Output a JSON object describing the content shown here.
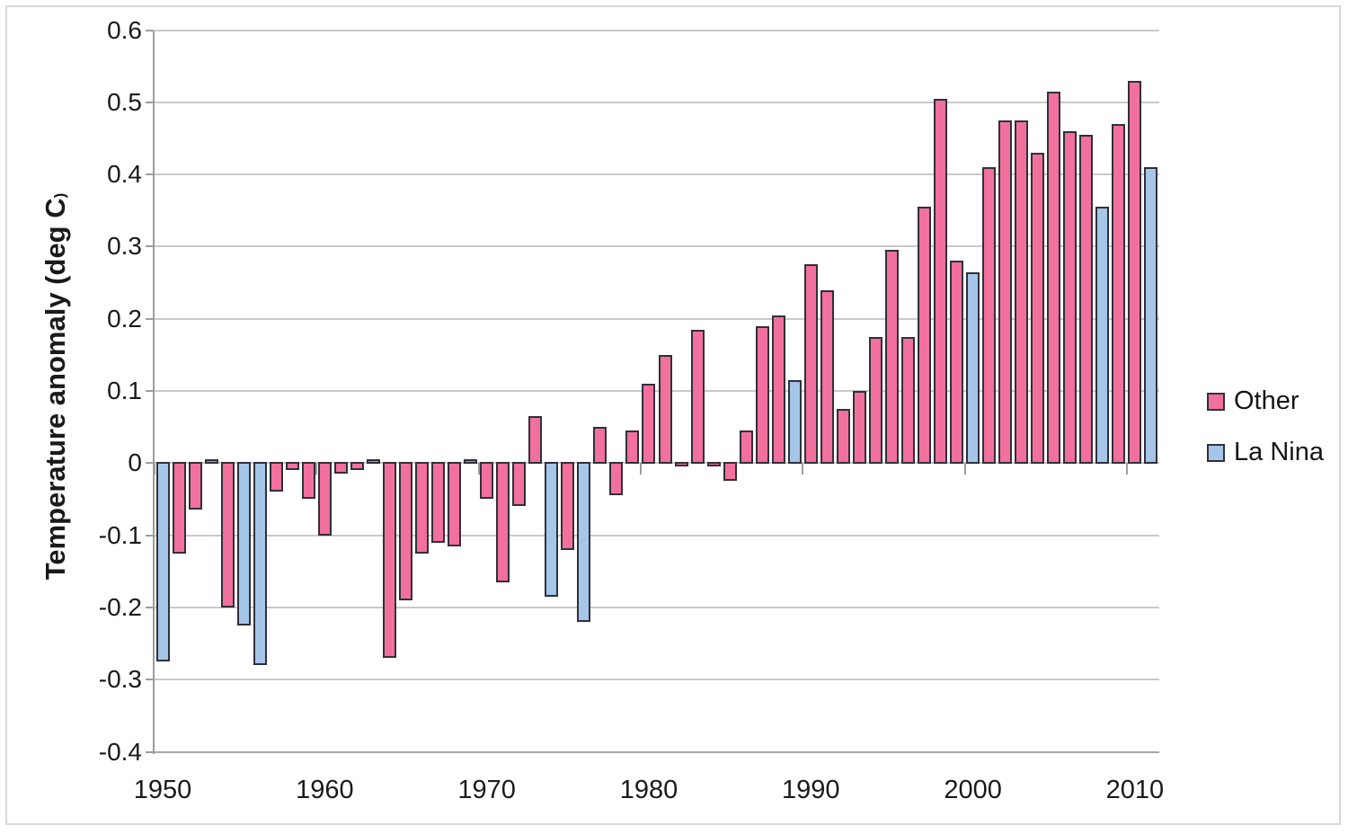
{
  "chart_data": {
    "type": "bar",
    "title": "",
    "xlabel": "",
    "ylabel": "Temperature anomaly (deg C",
    "ylabel_suffix": ")",
    "ylim": [
      -0.4,
      0.6
    ],
    "grid": true,
    "yticks": [
      {
        "value": 0.6,
        "label": "0.6"
      },
      {
        "value": 0.5,
        "label": "0.5"
      },
      {
        "value": 0.4,
        "label": "0.4"
      },
      {
        "value": 0.3,
        "label": "0.3"
      },
      {
        "value": 0.2,
        "label": "0.2"
      },
      {
        "value": 0.1,
        "label": "0.1"
      },
      {
        "value": 0.0,
        "label": "0"
      },
      {
        "value": -0.1,
        "label": "-0.1"
      },
      {
        "value": -0.2,
        "label": "-0.2"
      },
      {
        "value": -0.3,
        "label": "-0.3"
      },
      {
        "value": -0.4,
        "label": "-0.4"
      }
    ],
    "xticks": [
      1950,
      1960,
      1970,
      1980,
      1990,
      2000,
      2010
    ],
    "years": [
      1950,
      1951,
      1952,
      1953,
      1954,
      1955,
      1956,
      1957,
      1958,
      1959,
      1960,
      1961,
      1962,
      1963,
      1964,
      1965,
      1966,
      1967,
      1968,
      1969,
      1970,
      1971,
      1972,
      1973,
      1974,
      1975,
      1976,
      1977,
      1978,
      1979,
      1980,
      1981,
      1982,
      1983,
      1984,
      1985,
      1986,
      1987,
      1988,
      1989,
      1990,
      1991,
      1992,
      1993,
      1994,
      1995,
      1996,
      1997,
      1998,
      1999,
      2000,
      2001,
      2002,
      2003,
      2004,
      2005,
      2006,
      2007,
      2008,
      2009,
      2010,
      2011
    ],
    "values": [
      -0.275,
      -0.125,
      -0.065,
      0.005,
      -0.2,
      -0.225,
      -0.28,
      -0.04,
      -0.01,
      -0.05,
      -0.1,
      -0.015,
      -0.01,
      0.005,
      -0.27,
      -0.19,
      -0.125,
      -0.11,
      -0.115,
      0.005,
      -0.05,
      -0.165,
      -0.06,
      0.065,
      -0.185,
      -0.12,
      -0.22,
      0.05,
      -0.045,
      0.045,
      0.11,
      0.15,
      -0.005,
      0.185,
      -0.005,
      -0.025,
      0.045,
      0.19,
      0.205,
      0.115,
      0.275,
      0.24,
      0.075,
      0.1,
      0.175,
      0.295,
      0.175,
      0.355,
      0.505,
      0.28,
      0.265,
      0.41,
      0.475,
      0.475,
      0.43,
      0.515,
      0.46,
      0.455,
      0.355,
      0.47,
      0.53,
      0.41
    ],
    "la_nina_years": [
      1950,
      1955,
      1956,
      1974,
      1976,
      1989,
      2000,
      2008,
      2011
    ],
    "legend": {
      "position": "right",
      "items": [
        {
          "label": "Other",
          "color": "#F1709D"
        },
        {
          "label": "La Nina",
          "color": "#A5C6E8"
        }
      ]
    },
    "colors": {
      "other": "#F1709D",
      "la_nina": "#A5C6E8",
      "bar_outline": "#30303a",
      "gridline": "#c9c9c9",
      "axis": "#9c9c9c",
      "text": "#1a1a1a"
    }
  }
}
